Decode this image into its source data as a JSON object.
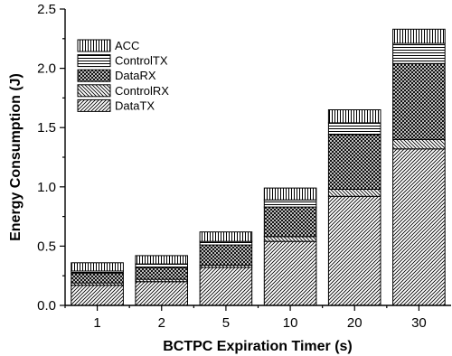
{
  "chart_data": {
    "type": "bar",
    "stacked": true,
    "categories": [
      "1",
      "2",
      "5",
      "10",
      "20",
      "30"
    ],
    "series": [
      {
        "name": "DataTX",
        "values": [
          0.17,
          0.2,
          0.32,
          0.54,
          0.92,
          1.32
        ],
        "pattern": "diagonal-dense"
      },
      {
        "name": "ControlRX",
        "values": [
          0.02,
          0.02,
          0.02,
          0.04,
          0.06,
          0.08
        ],
        "pattern": "backslash"
      },
      {
        "name": "DataRX",
        "values": [
          0.08,
          0.1,
          0.17,
          0.25,
          0.46,
          0.64
        ],
        "pattern": "crosshatch"
      },
      {
        "name": "ControlTX",
        "values": [
          0.02,
          0.03,
          0.03,
          0.06,
          0.1,
          0.17
        ],
        "pattern": "horizontal"
      },
      {
        "name": "ACC",
        "values": [
          0.07,
          0.07,
          0.08,
          0.1,
          0.11,
          0.12
        ],
        "pattern": "vertical"
      }
    ],
    "title": "",
    "xlabel": "BCTPC Expiration Timer (s)",
    "ylabel": "Energy Consumption (J)",
    "ylim": [
      0.0,
      2.5
    ],
    "yticks": [
      "0.0",
      "0.5",
      "1.0",
      "1.5",
      "2.0",
      "2.5"
    ],
    "legend_placement": "top-left",
    "legend_order": [
      "ACC",
      "ControlTX",
      "DataRX",
      "ControlRX",
      "DataTX"
    ],
    "grid": false
  }
}
